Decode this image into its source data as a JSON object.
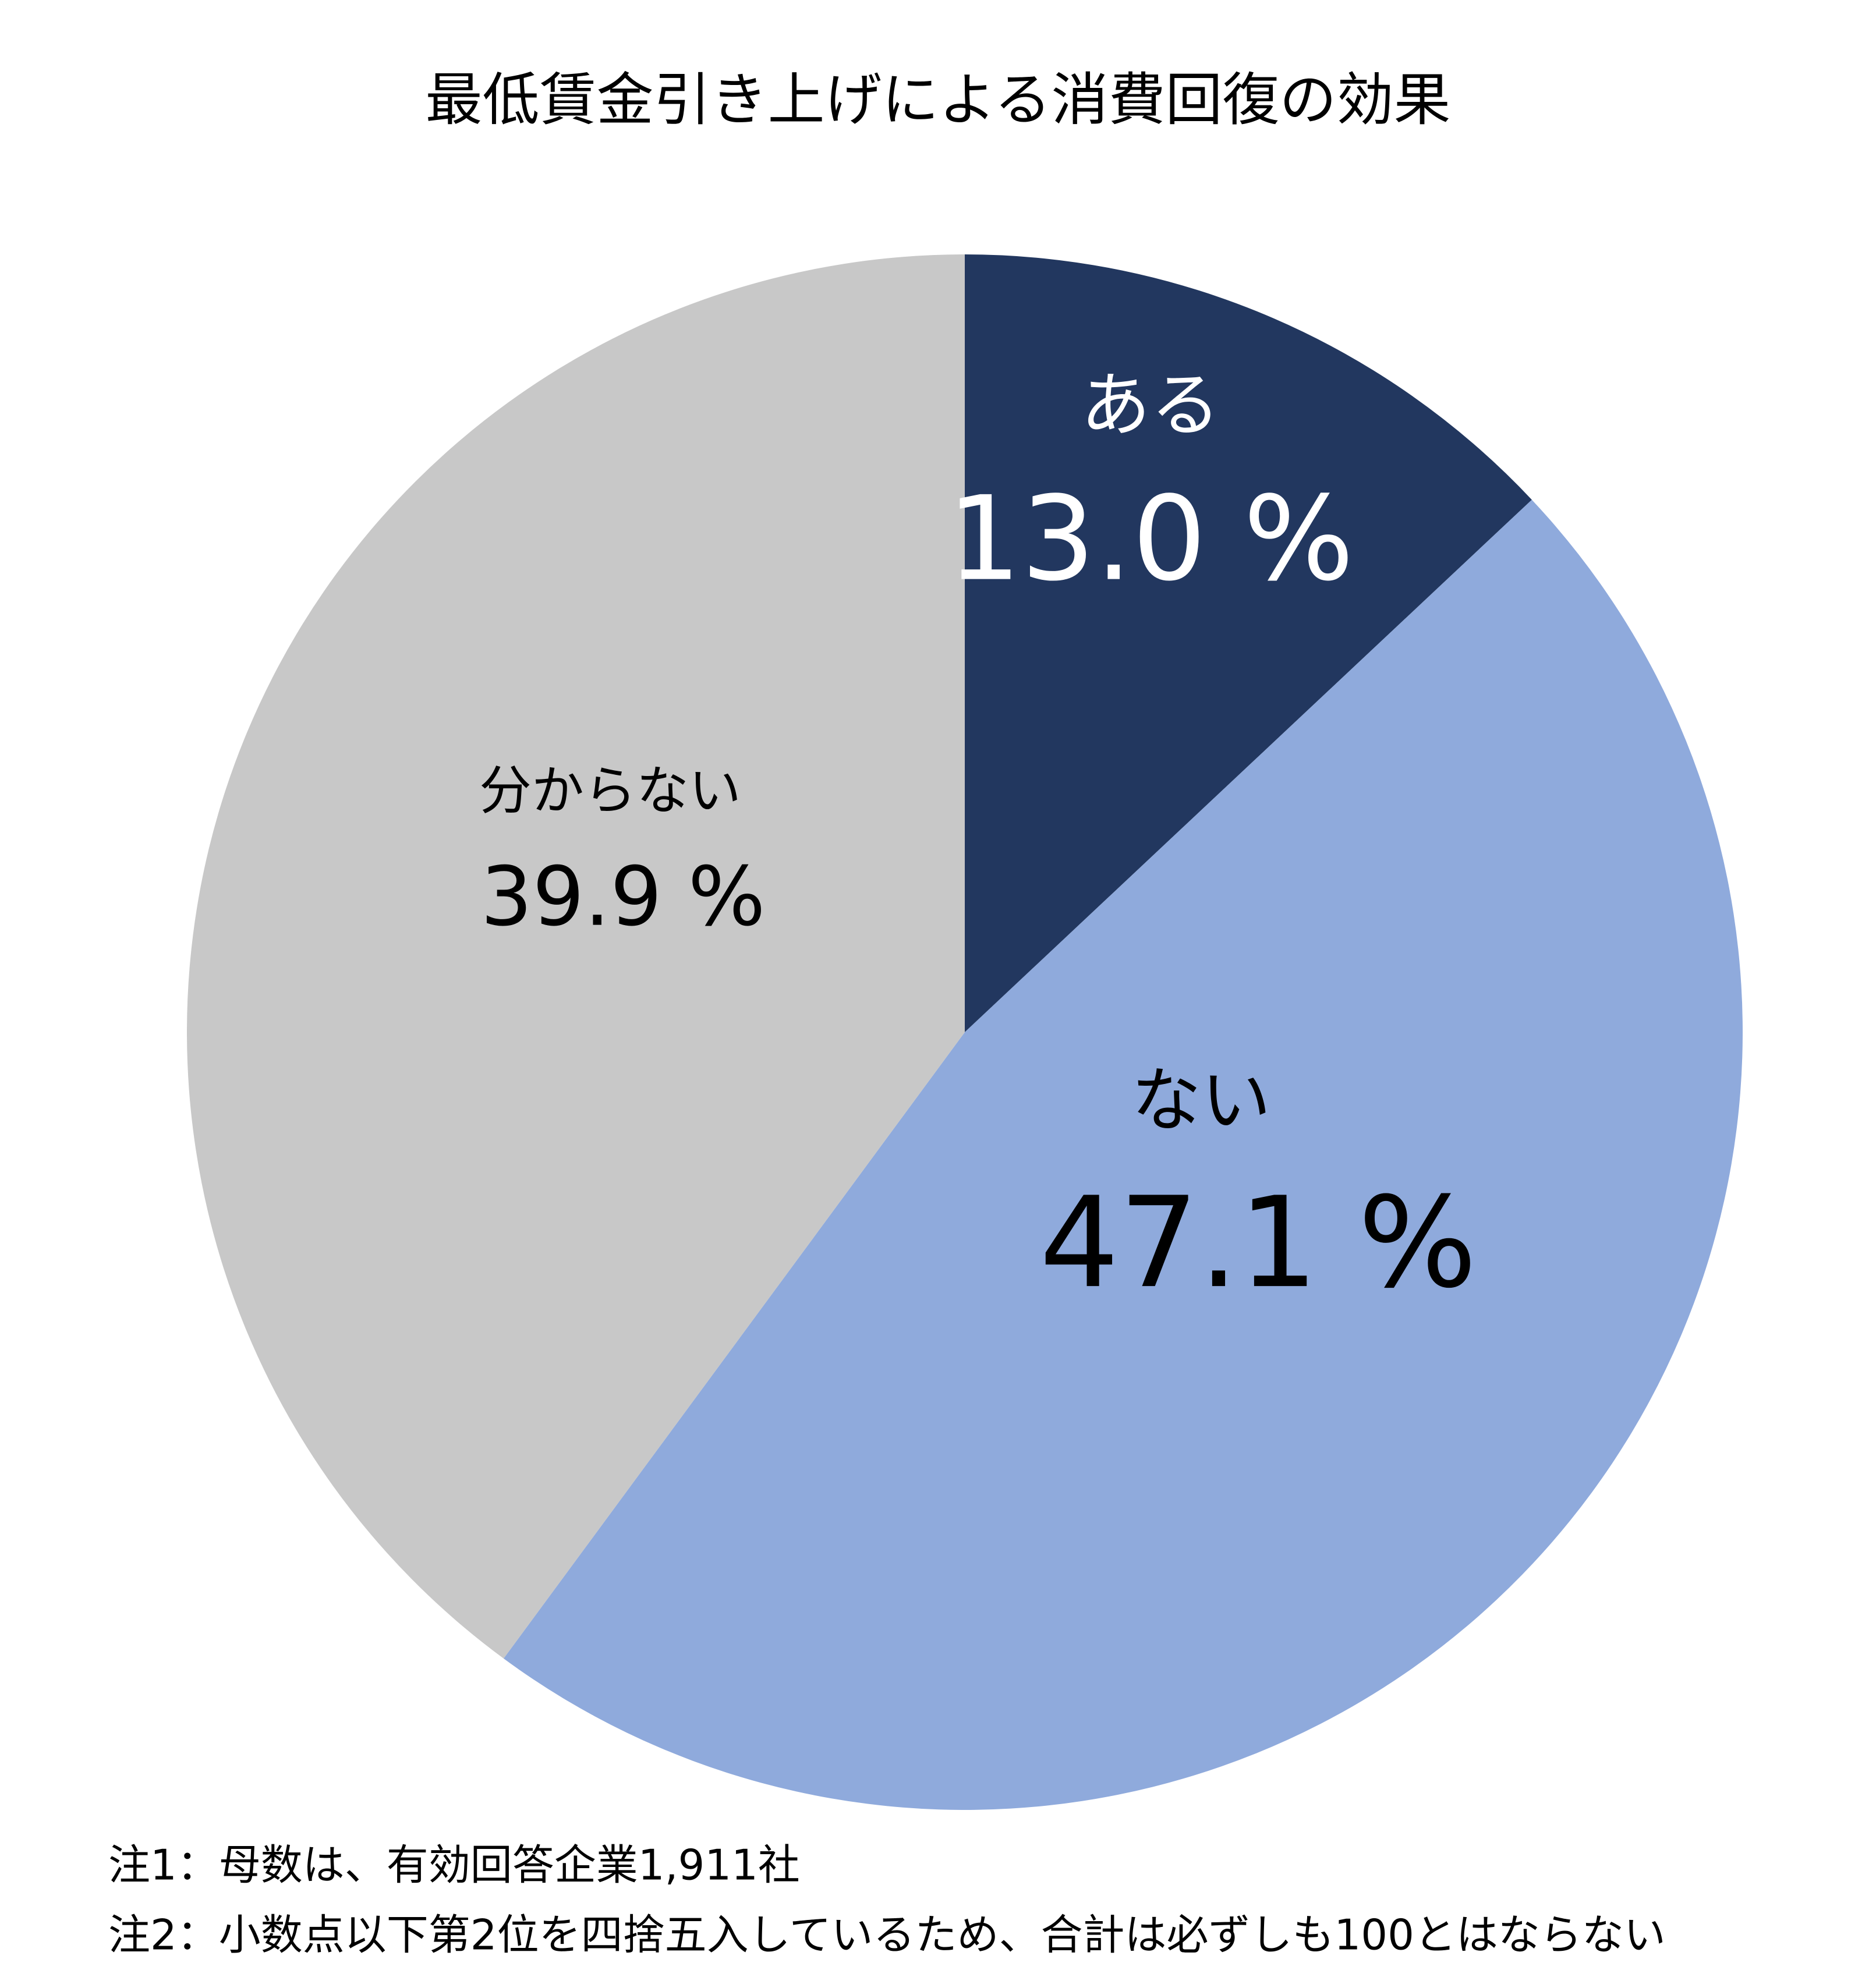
{
  "chart_data": {
    "type": "pie",
    "title": "最低賃金引き上げによる消費回復の効果",
    "categories": [
      "ある",
      "ない",
      "分からない"
    ],
    "values": [
      13.0,
      47.1,
      39.9
    ],
    "value_labels": [
      "13.0 %",
      "47.1 %",
      "39.9 %"
    ],
    "colors": [
      "#22375f",
      "#8faadc",
      "#c8c8c8"
    ],
    "notes": [
      "注1：母数は、有効回答企業1,911社",
      "注2：小数点以下第2位を四捨五入しているため、合計は必ずしも100とはならない"
    ]
  }
}
